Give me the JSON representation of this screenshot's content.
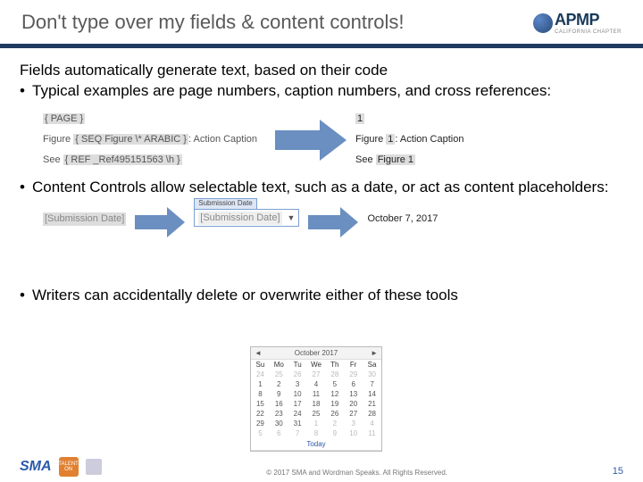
{
  "title": "Don't type over my fields & content controls!",
  "logo": {
    "text": "APMP",
    "subtitle": "CALIFORNIA CHAPTER"
  },
  "intro": "Fields automatically generate text, based on their code",
  "bullets": {
    "b1": "Typical examples are page numbers, caption numbers, and cross references:",
    "b2": "Content Controls allow selectable text, such as a date, or act as content placeholders:",
    "b3": "Writers can accidentally delete or overwrite either of these tools"
  },
  "fieldCodes": {
    "page": "{ PAGE }",
    "figLabel": "Figure",
    "figCode": "{ SEQ Figure \\* ARABIC }",
    "figSuffix": ": Action Caption",
    "seeLabel": "See",
    "seeCode": "{ REF _Ref495151563 \\h }"
  },
  "fieldResults": {
    "page": "1",
    "fig": "Figure",
    "figNum": "1",
    "figSuffix": ": Action Caption",
    "see": "See",
    "seeVal": "Figure 1"
  },
  "contentControl": {
    "placeholder": "[Submission Date]",
    "tab": "Submission Date",
    "value": "[Submission Date]",
    "resolved": "October 7, 2017"
  },
  "calendar": {
    "month": "October 2017",
    "dow": [
      "Su",
      "Mo",
      "Tu",
      "We",
      "Th",
      "Fr",
      "Sa"
    ],
    "leading": [
      "24",
      "25",
      "26",
      "27",
      "28",
      "29",
      "30"
    ],
    "rows": [
      [
        "1",
        "2",
        "3",
        "4",
        "5",
        "6",
        "7"
      ],
      [
        "8",
        "9",
        "10",
        "11",
        "12",
        "13",
        "14"
      ],
      [
        "15",
        "16",
        "17",
        "18",
        "19",
        "20",
        "21"
      ],
      [
        "22",
        "23",
        "24",
        "25",
        "26",
        "27",
        "28"
      ],
      [
        "29",
        "30",
        "31"
      ]
    ],
    "trailing": [
      "1",
      "2",
      "3",
      "4",
      "5",
      "6",
      "7",
      "8",
      "9",
      "10",
      "11"
    ],
    "todayLabel": "Today"
  },
  "footer": {
    "sma": "SMA",
    "badgeTop": "TALENT",
    "badgeBot": "ON",
    "copyright": "© 2017 SMA and Wordman Speaks. All Rights Reserved.",
    "page": "15"
  },
  "colors": {
    "rule": "#1f3a5f",
    "arrow": "#6a8fc0",
    "title": "#595959"
  }
}
